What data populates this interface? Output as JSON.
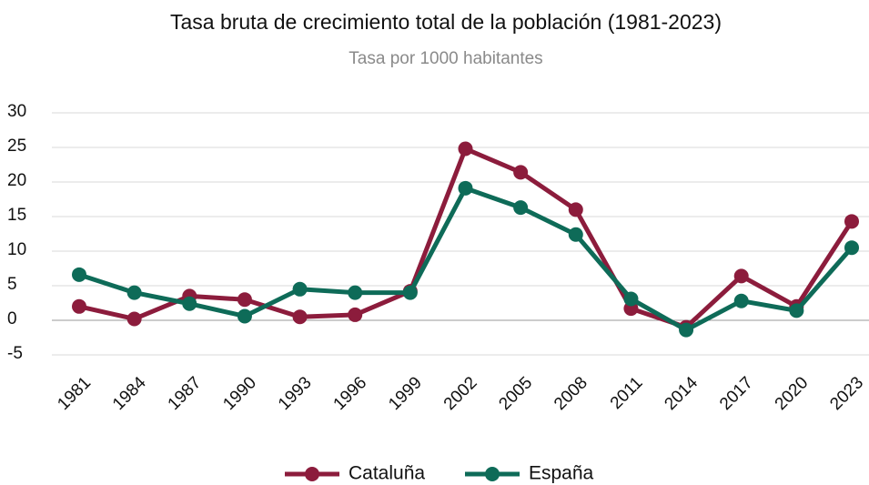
{
  "chart_data": {
    "type": "line",
    "title": "Tasa bruta de crecimiento total de la población (1981-2023)",
    "subtitle": "Tasa por 1000 habitantes",
    "categories": [
      "1981",
      "1984",
      "1987",
      "1990",
      "1993",
      "1996",
      "1999",
      "2002",
      "2005",
      "2008",
      "2011",
      "2014",
      "2017",
      "2020",
      "2023"
    ],
    "series": [
      {
        "name": "Cataluña",
        "color": "#8c1c3c",
        "values": [
          2.0,
          0.2,
          3.5,
          3.0,
          0.5,
          0.8,
          4.2,
          24.8,
          21.4,
          16.0,
          1.7,
          -1.0,
          6.4,
          2.0,
          14.3
        ]
      },
      {
        "name": "España",
        "color": "#0e6b58",
        "values": [
          6.6,
          4.0,
          2.4,
          0.6,
          4.5,
          4.0,
          4.0,
          19.1,
          16.3,
          12.4,
          3.1,
          -1.4,
          2.8,
          1.4,
          10.5
        ]
      }
    ],
    "ylim": [
      -5,
      30
    ],
    "yticks": [
      -5,
      0,
      5,
      10,
      15,
      20,
      25,
      30
    ],
    "grid": true,
    "legend": "bottom"
  }
}
